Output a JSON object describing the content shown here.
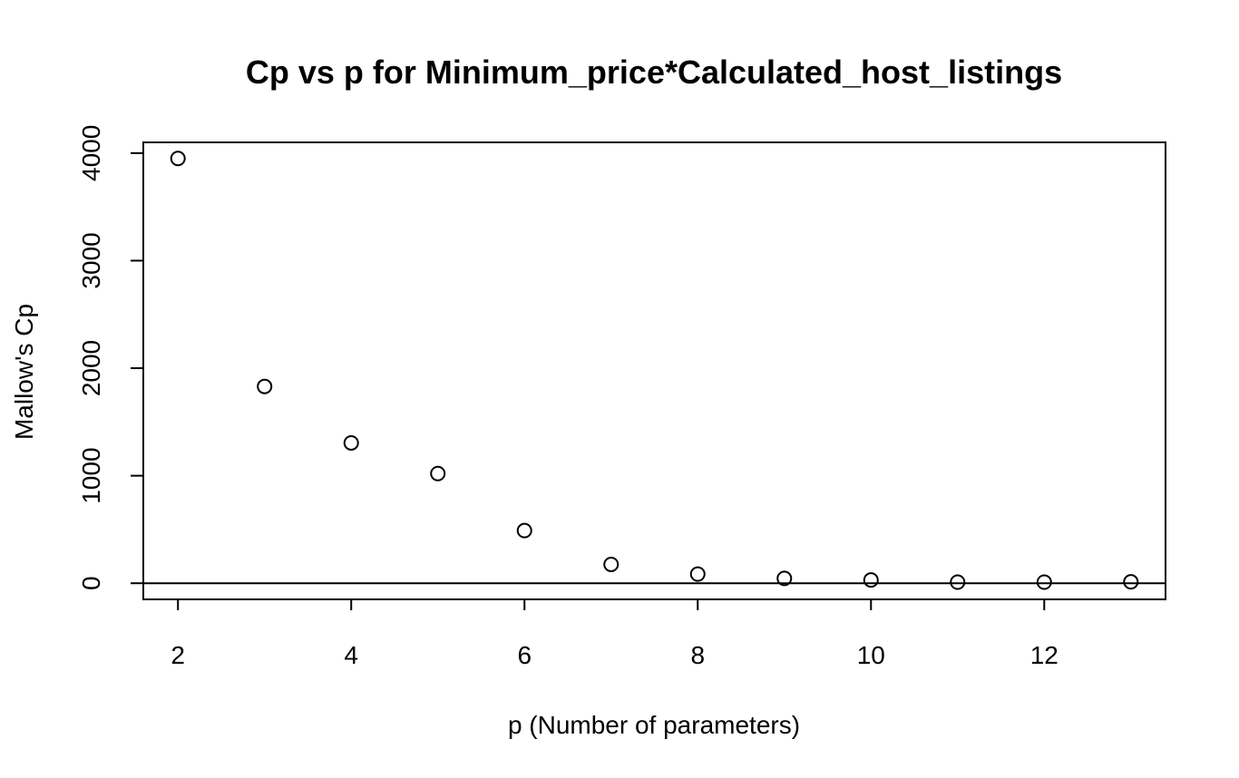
{
  "chart_data": {
    "type": "scatter",
    "title": "Cp vs p for Minimum_price*Calculated_host_listings",
    "xlabel": "p (Number of parameters)",
    "ylabel": "Mallow's Cp",
    "xlim": [
      1.6,
      13.4
    ],
    "ylim": [
      -150,
      4100
    ],
    "x_ticks": [
      2,
      4,
      6,
      8,
      10,
      12
    ],
    "x_tick_labels": [
      "2",
      "4",
      "6",
      "8",
      "10",
      "12"
    ],
    "y_ticks": [
      0,
      1000,
      2000,
      3000,
      4000
    ],
    "y_tick_labels": [
      "0",
      "1000",
      "2000",
      "3000",
      "4000"
    ],
    "grid": false,
    "marker": "open-circle",
    "reference_line": {
      "y": 0
    },
    "series": [
      {
        "x": [
          2,
          3,
          4,
          5,
          6,
          7,
          8,
          9,
          10,
          11,
          12,
          13
        ],
        "y": [
          3950,
          1830,
          1305,
          1020,
          490,
          175,
          85,
          45,
          30,
          10,
          10,
          13
        ]
      }
    ]
  }
}
